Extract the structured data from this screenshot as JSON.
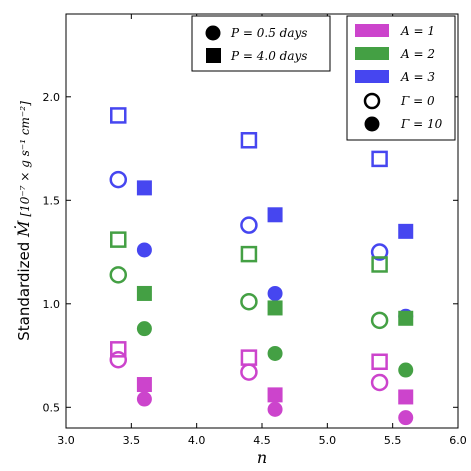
{
  "chart_data": {
    "type": "scatter",
    "xlabel": "n",
    "ylabel_prefix": "Standardized ",
    "ylabel_sym": "Ṁ",
    "ylabel_units": "[10⁻⁷ × g s⁻¹ cm⁻²]",
    "xlim": [
      3.0,
      6.0
    ],
    "ylim": [
      0.4,
      2.4
    ],
    "xticks": [
      "3.0",
      "3.5",
      "4.0",
      "4.5",
      "5.0",
      "5.5",
      "6.0"
    ],
    "xtick_values": [
      3.0,
      3.5,
      4.0,
      4.5,
      5.0,
      5.5,
      6.0
    ],
    "yticks": [
      "0.5",
      "1.0",
      "1.5",
      "2.0"
    ],
    "ytick_values": [
      0.5,
      1.0,
      1.5,
      2.0
    ],
    "grid": false,
    "colors": {
      "A1": "#cc44cc",
      "A2": "#44a044",
      "A3": "#4646f0",
      "dark": "#1a6a5a"
    },
    "legend_shape": {
      "placement": "top-center",
      "entries": [
        {
          "label": "P = 0.5 days",
          "marker": "circle"
        },
        {
          "label": "P = 4.0 days",
          "marker": "square"
        }
      ]
    },
    "legend_color": {
      "placement": "top-right",
      "entries": [
        {
          "label": "A = 1",
          "color": "#cc44cc",
          "kind": "patch"
        },
        {
          "label": "A = 2",
          "color": "#44a044",
          "kind": "patch"
        },
        {
          "label": "A = 3",
          "color": "#4646f0",
          "kind": "patch"
        },
        {
          "label": "Γ = 0",
          "kind": "open-circle"
        },
        {
          "label": "Γ = 10",
          "kind": "filled-circle"
        }
      ]
    },
    "points": [
      {
        "x": 3.4,
        "y": 1.91,
        "A": 3,
        "P": "4.0",
        "gamma": 0
      },
      {
        "x": 3.4,
        "y": 1.6,
        "A": 3,
        "P": "0.5",
        "gamma": 0
      },
      {
        "x": 3.4,
        "y": 1.31,
        "A": 2,
        "P": "4.0",
        "gamma": 0
      },
      {
        "x": 3.4,
        "y": 1.14,
        "A": 2,
        "P": "0.5",
        "gamma": 0
      },
      {
        "x": 3.4,
        "y": 0.78,
        "A": 1,
        "P": "4.0",
        "gamma": 0
      },
      {
        "x": 3.4,
        "y": 0.73,
        "A": 1,
        "P": "0.5",
        "gamma": 0
      },
      {
        "x": 3.6,
        "y": 1.56,
        "A": 3,
        "P": "4.0",
        "gamma": 10
      },
      {
        "x": 3.6,
        "y": 1.26,
        "A": 3,
        "P": "0.5",
        "gamma": 10
      },
      {
        "x": 3.6,
        "y": 1.05,
        "A": 2,
        "P": "4.0",
        "gamma": 10
      },
      {
        "x": 3.6,
        "y": 0.88,
        "A": 2,
        "P": "0.5",
        "gamma": 10
      },
      {
        "x": 3.6,
        "y": 0.61,
        "A": 1,
        "P": "4.0",
        "gamma": 10
      },
      {
        "x": 3.6,
        "y": 0.54,
        "A": 1,
        "P": "0.5",
        "gamma": 10
      },
      {
        "x": 4.4,
        "y": 1.79,
        "A": 3,
        "P": "4.0",
        "gamma": 0
      },
      {
        "x": 4.4,
        "y": 1.38,
        "A": 3,
        "P": "0.5",
        "gamma": 0
      },
      {
        "x": 4.4,
        "y": 1.24,
        "A": 2,
        "P": "4.0",
        "gamma": 0
      },
      {
        "x": 4.4,
        "y": 1.01,
        "A": 2,
        "P": "0.5",
        "gamma": 0
      },
      {
        "x": 4.4,
        "y": 0.74,
        "A": 1,
        "P": "4.0",
        "gamma": 0
      },
      {
        "x": 4.4,
        "y": 0.67,
        "A": 1,
        "P": "0.5",
        "gamma": 0
      },
      {
        "x": 4.6,
        "y": 1.43,
        "A": 3,
        "P": "4.0",
        "gamma": 10
      },
      {
        "x": 4.6,
        "y": 1.05,
        "A": 3,
        "P": "0.5",
        "gamma": 10
      },
      {
        "x": 4.6,
        "y": 0.98,
        "A": 2,
        "P": "4.0",
        "gamma": 10
      },
      {
        "x": 4.6,
        "y": 0.76,
        "A": 2,
        "P": "0.5",
        "gamma": 10
      },
      {
        "x": 4.6,
        "y": 0.56,
        "A": 1,
        "P": "4.0",
        "gamma": 10
      },
      {
        "x": 4.6,
        "y": 0.49,
        "A": 1,
        "P": "0.5",
        "gamma": 10
      },
      {
        "x": 5.4,
        "y": 1.7,
        "A": 3,
        "P": "4.0",
        "gamma": 0
      },
      {
        "x": 5.4,
        "y": 1.25,
        "A": 3,
        "P": "0.5",
        "gamma": 0
      },
      {
        "x": 5.4,
        "y": 1.19,
        "A": 2,
        "P": "4.0",
        "gamma": 0
      },
      {
        "x": 5.4,
        "y": 0.92,
        "A": 2,
        "P": "0.5",
        "gamma": 0
      },
      {
        "x": 5.4,
        "y": 0.72,
        "A": 1,
        "P": "4.0",
        "gamma": 0
      },
      {
        "x": 5.4,
        "y": 0.62,
        "A": 1,
        "P": "0.5",
        "gamma": 0
      },
      {
        "x": 5.6,
        "y": 1.35,
        "A": 3,
        "P": "4.0",
        "gamma": 10
      },
      {
        "x": 5.6,
        "y": 0.94,
        "A": 3,
        "P": "0.5",
        "gamma": 10
      },
      {
        "x": 5.6,
        "y": 0.93,
        "A": 2,
        "P": "4.0",
        "gamma": 10
      },
      {
        "x": 5.6,
        "y": 0.68,
        "A": 2,
        "P": "0.5",
        "gamma": 10
      },
      {
        "x": 5.6,
        "y": 0.55,
        "A": 1,
        "P": "4.0",
        "gamma": 10
      },
      {
        "x": 5.6,
        "y": 0.45,
        "A": 1,
        "P": "0.5",
        "gamma": 10
      }
    ]
  }
}
